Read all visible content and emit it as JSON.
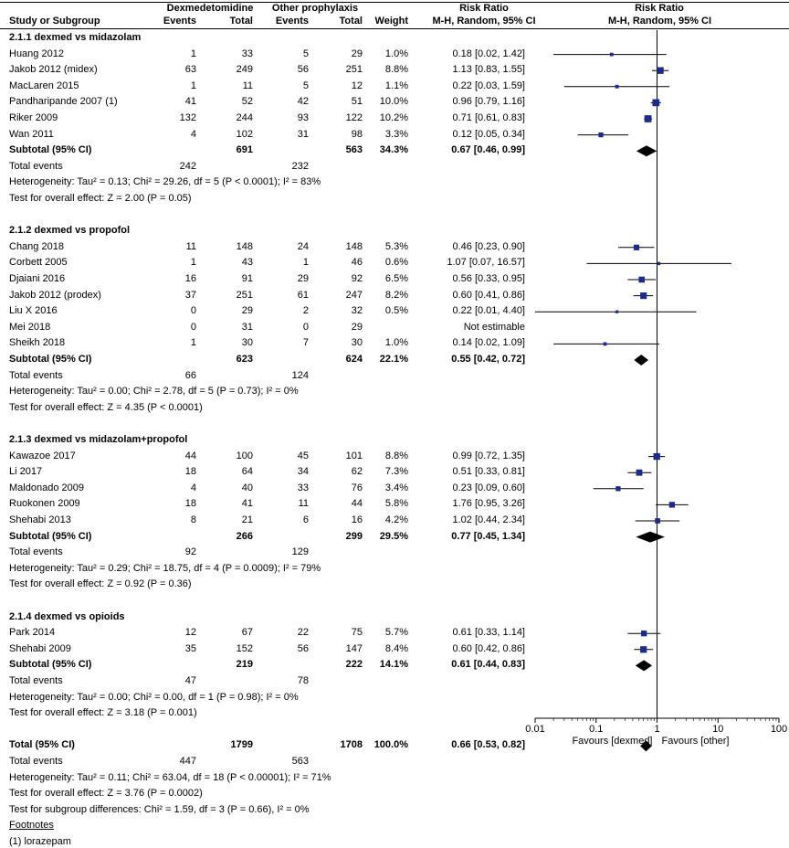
{
  "header": {
    "col_study": "Study or Subgroup",
    "group1": "Dexmedetomidine",
    "group2": "Other prophylaxis",
    "events": "Events",
    "total": "Total",
    "weight": "Weight",
    "rr_title": "Risk Ratio",
    "rr_method": "M-H, Random, 95% CI",
    "plot_title": "Risk Ratio",
    "plot_method": "M-H, Random, 95% CI"
  },
  "rows": [
    {
      "kind": "heading",
      "label": "2.1.1 dexmed vs midazolam"
    },
    {
      "kind": "study",
      "label": "Huang 2012",
      "e1": "1",
      "n1": "33",
      "e2": "5",
      "n2": "29",
      "w": "1.0%",
      "ci": "0.18 [0.02, 1.42]"
    },
    {
      "kind": "study",
      "label": "Jakob 2012 (midex)",
      "e1": "63",
      "n1": "249",
      "e2": "56",
      "n2": "251",
      "w": "8.8%",
      "ci": "1.13 [0.83, 1.55]"
    },
    {
      "kind": "study",
      "label": "MacLaren 2015",
      "e1": "1",
      "n1": "11",
      "e2": "5",
      "n2": "12",
      "w": "1.1%",
      "ci": "0.22 [0.03, 1.59]"
    },
    {
      "kind": "study",
      "label": "Pandharipande 2007 (1)",
      "e1": "41",
      "n1": "52",
      "e2": "42",
      "n2": "51",
      "w": "10.0%",
      "ci": "0.96 [0.79, 1.16]"
    },
    {
      "kind": "study",
      "label": "Riker 2009",
      "e1": "132",
      "n1": "244",
      "e2": "93",
      "n2": "122",
      "w": "10.2%",
      "ci": "0.71 [0.61, 0.83]"
    },
    {
      "kind": "study",
      "label": "Wan 2011",
      "e1": "4",
      "n1": "102",
      "e2": "31",
      "n2": "98",
      "w": "3.3%",
      "ci": "0.12 [0.05, 0.34]"
    },
    {
      "kind": "subtotal",
      "label": "Subtotal (95% CI)",
      "n1": "691",
      "n2": "563",
      "w": "34.3%",
      "ci": "0.67 [0.46, 0.99]"
    },
    {
      "kind": "events",
      "label": "Total events",
      "e1": "242",
      "e2": "232"
    },
    {
      "kind": "text",
      "label": "Heterogeneity: Tau² = 0.13; Chi² = 29.26, df = 5 (P < 0.0001); I² = 83%"
    },
    {
      "kind": "text",
      "label": "Test for overall effect: Z = 2.00 (P = 0.05)"
    },
    {
      "kind": "blank"
    },
    {
      "kind": "heading",
      "label": "2.1.2 dexmed vs propofol"
    },
    {
      "kind": "study",
      "label": "Chang 2018",
      "e1": "11",
      "n1": "148",
      "e2": "24",
      "n2": "148",
      "w": "5.3%",
      "ci": "0.46 [0.23, 0.90]"
    },
    {
      "kind": "study",
      "label": "Corbett 2005",
      "e1": "1",
      "n1": "43",
      "e2": "1",
      "n2": "46",
      "w": "0.6%",
      "ci": "1.07 [0.07, 16.57]"
    },
    {
      "kind": "study",
      "label": "Djaiani 2016",
      "e1": "16",
      "n1": "91",
      "e2": "29",
      "n2": "92",
      "w": "6.5%",
      "ci": "0.56 [0.33, 0.95]"
    },
    {
      "kind": "study",
      "label": "Jakob 2012 (prodex)",
      "e1": "37",
      "n1": "251",
      "e2": "61",
      "n2": "247",
      "w": "8.2%",
      "ci": "0.60 [0.41, 0.86]"
    },
    {
      "kind": "study",
      "label": "Liu X 2016",
      "e1": "0",
      "n1": "29",
      "e2": "2",
      "n2": "32",
      "w": "0.5%",
      "ci": "0.22 [0.01, 4.40]"
    },
    {
      "kind": "study",
      "label": "Mei 2018",
      "e1": "0",
      "n1": "31",
      "e2": "0",
      "n2": "29",
      "w": "",
      "ci": "Not estimable"
    },
    {
      "kind": "study",
      "label": "Sheikh 2018",
      "e1": "1",
      "n1": "30",
      "e2": "7",
      "n2": "30",
      "w": "1.0%",
      "ci": "0.14 [0.02, 1.09]"
    },
    {
      "kind": "subtotal",
      "label": "Subtotal (95% CI)",
      "n1": "623",
      "n2": "624",
      "w": "22.1%",
      "ci": "0.55 [0.42, 0.72]"
    },
    {
      "kind": "events",
      "label": "Total events",
      "e1": "66",
      "e2": "124"
    },
    {
      "kind": "text",
      "label": "Heterogeneity: Tau² = 0.00; Chi² = 2.78, df = 5 (P = 0.73); I² = 0%"
    },
    {
      "kind": "text",
      "label": "Test for overall effect: Z = 4.35 (P < 0.0001)"
    },
    {
      "kind": "blank"
    },
    {
      "kind": "heading",
      "label": "2.1.3 dexmed vs midazolam+propofol"
    },
    {
      "kind": "study",
      "label": "Kawazoe 2017",
      "e1": "44",
      "n1": "100",
      "e2": "45",
      "n2": "101",
      "w": "8.8%",
      "ci": "0.99 [0.72, 1.35]"
    },
    {
      "kind": "study",
      "label": "Li 2017",
      "e1": "18",
      "n1": "64",
      "e2": "34",
      "n2": "62",
      "w": "7.3%",
      "ci": "0.51 [0.33, 0.81]"
    },
    {
      "kind": "study",
      "label": "Maldonado 2009",
      "e1": "4",
      "n1": "40",
      "e2": "33",
      "n2": "76",
      "w": "3.4%",
      "ci": "0.23 [0.09, 0.60]"
    },
    {
      "kind": "study",
      "label": "Ruokonen 2009",
      "e1": "18",
      "n1": "41",
      "e2": "11",
      "n2": "44",
      "w": "5.8%",
      "ci": "1.76 [0.95, 3.26]"
    },
    {
      "kind": "study",
      "label": "Shehabi 2013",
      "e1": "8",
      "n1": "21",
      "e2": "6",
      "n2": "16",
      "w": "4.2%",
      "ci": "1.02 [0.44, 2.34]"
    },
    {
      "kind": "subtotal",
      "label": "Subtotal (95% CI)",
      "n1": "266",
      "n2": "299",
      "w": "29.5%",
      "ci": "0.77 [0.45, 1.34]"
    },
    {
      "kind": "events",
      "label": "Total events",
      "e1": "92",
      "e2": "129"
    },
    {
      "kind": "text",
      "label": "Heterogeneity: Tau² = 0.29; Chi² = 18.75, df = 4 (P = 0.0009); I² = 79%"
    },
    {
      "kind": "text",
      "label": "Test for overall effect: Z = 0.92 (P = 0.36)"
    },
    {
      "kind": "blank"
    },
    {
      "kind": "heading",
      "label": "2.1.4 dexmed vs opioids"
    },
    {
      "kind": "study",
      "label": "Park 2014",
      "e1": "12",
      "n1": "67",
      "e2": "22",
      "n2": "75",
      "w": "5.7%",
      "ci": "0.61 [0.33, 1.14]"
    },
    {
      "kind": "study",
      "label": "Shehabi 2009",
      "e1": "35",
      "n1": "152",
      "e2": "56",
      "n2": "147",
      "w": "8.4%",
      "ci": "0.60 [0.42, 0.86]"
    },
    {
      "kind": "subtotal",
      "label": "Subtotal (95% CI)",
      "n1": "219",
      "n2": "222",
      "w": "14.1%",
      "ci": "0.61 [0.44, 0.83]"
    },
    {
      "kind": "events",
      "label": "Total events",
      "e1": "47",
      "e2": "78"
    },
    {
      "kind": "text",
      "label": "Heterogeneity: Tau² = 0.00; Chi² = 0.00, df = 1 (P = 0.98); I² = 0%"
    },
    {
      "kind": "text",
      "label": "Test for overall effect: Z = 3.18 (P = 0.001)"
    },
    {
      "kind": "blank"
    },
    {
      "kind": "subtotal",
      "label": "Total (95% CI)",
      "n1": "1799",
      "n2": "1708",
      "w": "100.0%",
      "ci": "0.66 [0.53, 0.82]"
    },
    {
      "kind": "events",
      "label": "Total events",
      "e1": "447",
      "e2": "563"
    },
    {
      "kind": "text",
      "label": "Heterogeneity: Tau² = 0.11; Chi² = 63.04, df = 18 (P < 0.00001); I² = 71%"
    },
    {
      "kind": "text",
      "label": "Test for overall effect: Z = 3.76 (P = 0.0002)"
    },
    {
      "kind": "text",
      "label": "Test for subgroup differences: Chi² = 1.59, df = 3 (P = 0.66), I² = 0%"
    },
    {
      "kind": "footnote_title",
      "label": "Footnotes"
    },
    {
      "kind": "text",
      "label": "(1) lorazepam"
    }
  ],
  "chart_data": {
    "type": "forest",
    "title": "Risk Ratio",
    "subtitle": "M-H, Random, 95% CI",
    "x_scale": "log",
    "xlim": [
      0.01,
      100
    ],
    "x_ticks": [
      "0.01",
      "0.1",
      "1",
      "10",
      "100"
    ],
    "x_tick_values": [
      0.01,
      0.1,
      1,
      10,
      100
    ],
    "favours_left": "Favours [dexmed]",
    "favours_right": "Favours [other]",
    "null_line": 1,
    "colors": {
      "study_marker": "#1c2a8a",
      "ci_line": "#000000",
      "diamond": "#000000"
    },
    "studies": [
      {
        "name": "Huang 2012",
        "row": 1,
        "rr": 0.18,
        "lo": 0.02,
        "hi": 1.42,
        "weight": 1.0
      },
      {
        "name": "Jakob 2012 (midex)",
        "row": 2,
        "rr": 1.13,
        "lo": 0.83,
        "hi": 1.55,
        "weight": 8.8
      },
      {
        "name": "MacLaren 2015",
        "row": 3,
        "rr": 0.22,
        "lo": 0.03,
        "hi": 1.59,
        "weight": 1.1
      },
      {
        "name": "Pandharipande 2007 (1)",
        "row": 4,
        "rr": 0.96,
        "lo": 0.79,
        "hi": 1.16,
        "weight": 10.0
      },
      {
        "name": "Riker 2009",
        "row": 5,
        "rr": 0.71,
        "lo": 0.61,
        "hi": 0.83,
        "weight": 10.2
      },
      {
        "name": "Wan 2011",
        "row": 6,
        "rr": 0.12,
        "lo": 0.05,
        "hi": 0.34,
        "weight": 3.3
      },
      {
        "name": "Chang 2018",
        "row": 13,
        "rr": 0.46,
        "lo": 0.23,
        "hi": 0.9,
        "weight": 5.3
      },
      {
        "name": "Corbett 2005",
        "row": 14,
        "rr": 1.07,
        "lo": 0.07,
        "hi": 16.57,
        "weight": 0.6
      },
      {
        "name": "Djaiani 2016",
        "row": 15,
        "rr": 0.56,
        "lo": 0.33,
        "hi": 0.95,
        "weight": 6.5
      },
      {
        "name": "Jakob 2012 (prodex)",
        "row": 16,
        "rr": 0.6,
        "lo": 0.41,
        "hi": 0.86,
        "weight": 8.2
      },
      {
        "name": "Liu X 2016",
        "row": 17,
        "rr": 0.22,
        "lo": 0.01,
        "hi": 4.4,
        "weight": 0.5
      },
      {
        "name": "Sheikh 2018",
        "row": 19,
        "rr": 0.14,
        "lo": 0.02,
        "hi": 1.09,
        "weight": 1.0
      },
      {
        "name": "Kawazoe 2017",
        "row": 26,
        "rr": 0.99,
        "lo": 0.72,
        "hi": 1.35,
        "weight": 8.8
      },
      {
        "name": "Li 2017",
        "row": 27,
        "rr": 0.51,
        "lo": 0.33,
        "hi": 0.81,
        "weight": 7.3
      },
      {
        "name": "Maldonado 2009",
        "row": 28,
        "rr": 0.23,
        "lo": 0.09,
        "hi": 0.6,
        "weight": 3.4
      },
      {
        "name": "Ruokonen 2009",
        "row": 29,
        "rr": 1.76,
        "lo": 0.95,
        "hi": 3.26,
        "weight": 5.8
      },
      {
        "name": "Shehabi 2013",
        "row": 30,
        "rr": 1.02,
        "lo": 0.44,
        "hi": 2.34,
        "weight": 4.2
      },
      {
        "name": "Park 2014",
        "row": 37,
        "rr": 0.61,
        "lo": 0.33,
        "hi": 1.14,
        "weight": 5.7
      },
      {
        "name": "Shehabi 2009",
        "row": 38,
        "rr": 0.6,
        "lo": 0.42,
        "hi": 0.86,
        "weight": 8.4
      }
    ],
    "diamonds": [
      {
        "name": "Subtotal 2.1.1",
        "row": 7,
        "rr": 0.67,
        "lo": 0.46,
        "hi": 0.99
      },
      {
        "name": "Subtotal 2.1.2",
        "row": 20,
        "rr": 0.55,
        "lo": 0.42,
        "hi": 0.72
      },
      {
        "name": "Subtotal 2.1.3",
        "row": 31,
        "rr": 0.77,
        "lo": 0.45,
        "hi": 1.34
      },
      {
        "name": "Subtotal 2.1.4",
        "row": 39,
        "rr": 0.61,
        "lo": 0.44,
        "hi": 0.83
      },
      {
        "name": "Total",
        "row": 44,
        "rr": 0.66,
        "lo": 0.53,
        "hi": 0.82
      }
    ]
  }
}
